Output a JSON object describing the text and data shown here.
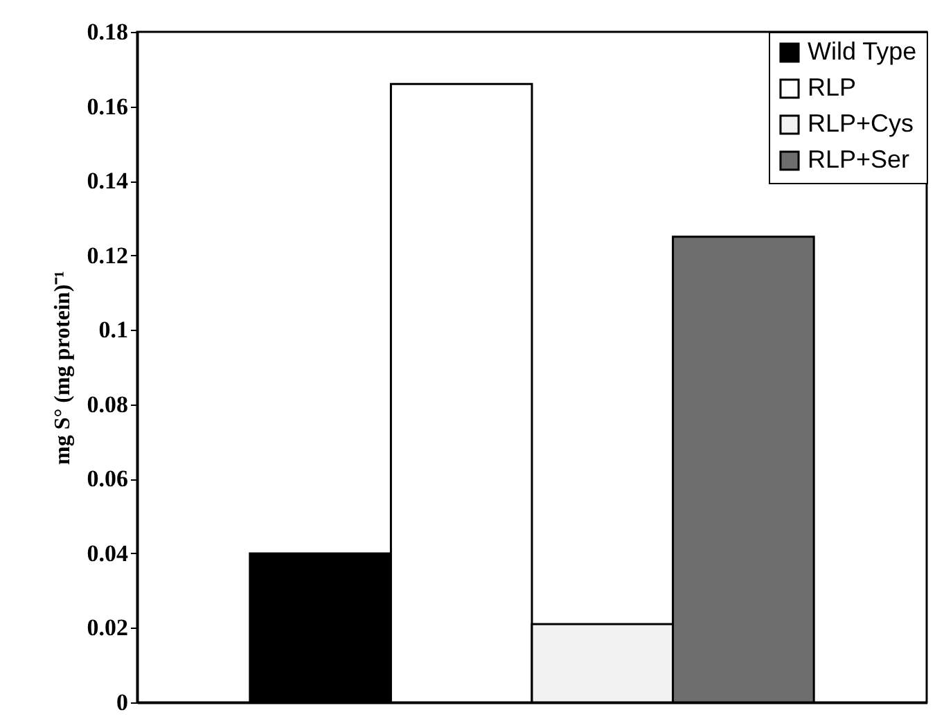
{
  "chart_data": {
    "type": "bar",
    "ylabel": "mg S° (mg protein)⁻¹",
    "categories": [
      null
    ],
    "series": [
      {
        "name": "Wild Type",
        "color": "#000000",
        "values": [
          0.04
        ]
      },
      {
        "name": "RLP",
        "color": "#ffffff",
        "values": [
          0.166
        ]
      },
      {
        "name": "RLP+Cys",
        "color": "#f2f2f2",
        "values": [
          0.021
        ]
      },
      {
        "name": "RLP+Ser",
        "color": "#6e6e6e",
        "values": [
          0.125
        ]
      }
    ],
    "ylim": [
      0,
      0.18
    ],
    "yticks": [
      0,
      0.02,
      0.04,
      0.06,
      0.08,
      0.1,
      0.12,
      0.14,
      0.16,
      0.18
    ],
    "legend": "top right",
    "tick_labels": "y",
    "grid": false
  }
}
